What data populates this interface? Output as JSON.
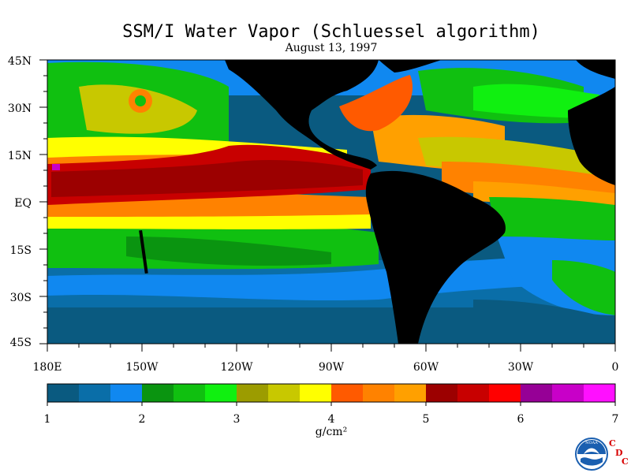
{
  "title": "SSM/I Water Vapor (Schluessel algorithm)",
  "subtitle": "August 13, 1997",
  "lat_labels": [
    "45N",
    "30N",
    "15N",
    "EQ",
    "15S",
    "30S",
    "45S"
  ],
  "lon_labels": [
    "180E",
    "150W",
    "120W",
    "90W",
    "60W",
    "30W",
    "0"
  ],
  "colorbar": {
    "colors": [
      "#0a5a80",
      "#0a6ea8",
      "#1088f0",
      "#0a9410",
      "#10c010",
      "#10f010",
      "#9c9c00",
      "#c8c800",
      "#ffff00",
      "#ff5a00",
      "#ff8200",
      "#ffa000",
      "#9c0000",
      "#c80000",
      "#ff0000",
      "#960096",
      "#c800c8",
      "#ff10ff"
    ],
    "tick_labels": [
      "1",
      "2",
      "3",
      "4",
      "5",
      "6",
      "7"
    ],
    "unit": "g/cm²"
  },
  "logo": {
    "noaa_text": "NOAA",
    "cdc_letters": [
      "C",
      "D",
      "C"
    ]
  },
  "colors": {
    "land": "#000000",
    "cdc_red": "#d80000",
    "noaa_blue": "#1a5fb0"
  }
}
